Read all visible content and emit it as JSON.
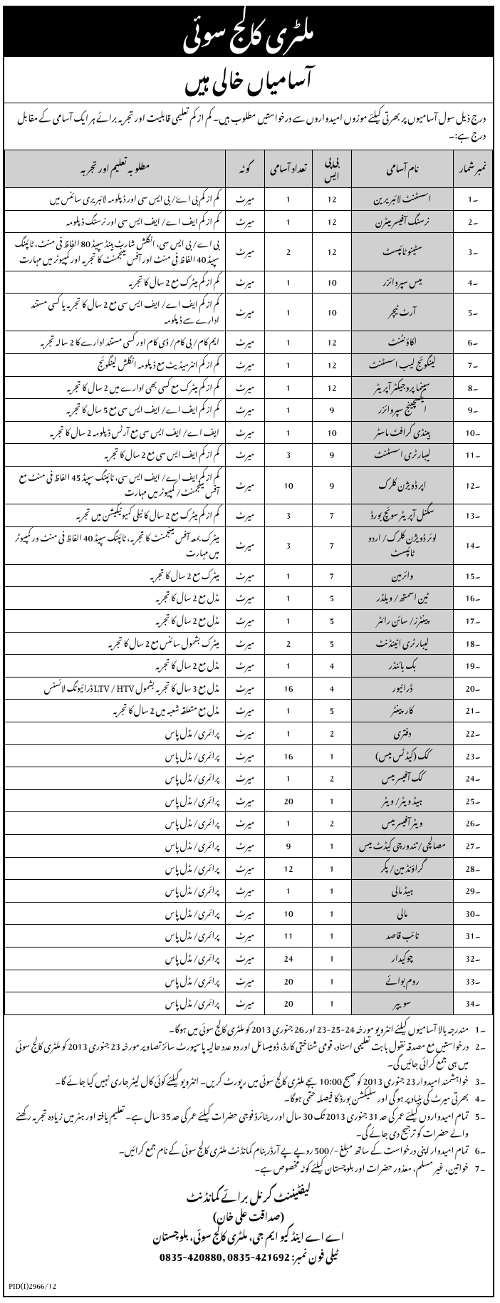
{
  "header": {
    "title": "ملٹری کالج سوئی",
    "subtitle": "آسامیاں خالی ہیں",
    "intro": "درج ذیل سول آسامیوں پر بھرتی کیلئے موزوں امیدواروں سے درخواستیں مطلوب ہیں۔ کم از کم تعلیمی قابلیت اور تجربہ برائے ہر ایک آسامی کے مقابل درج ہے:۔"
  },
  "table": {
    "headers": {
      "sr": "نمبر شمار",
      "post": "نام آسامی",
      "bps": "بی پی ایس",
      "vac": "تعداد آسامی",
      "quota": "کوٹہ",
      "qual": "مطلوبہ تعلیم اور تجربہ"
    },
    "rows": [
      {
        "sr": "۔1",
        "post": "اسسٹنٹ لائبریرین",
        "bps": "12",
        "vac": "1",
        "quota": "میرٹ",
        "qual": "کم از کم بی اےٗ/ بی ایس سی اور ڈپلومہ لائبریری سائنس میں"
      },
      {
        "sr": "۔2",
        "post": "نرسنگ آفیسر میٹرن",
        "bps": "12",
        "vac": "1",
        "quota": "میرٹ",
        "qual": "کم از کم ایف اے/ ایف ایس سی اور نرسنگ ڈپلومہ"
      },
      {
        "sr": "۔3",
        "post": "سٹینو ٹائپسٹ",
        "bps": "12",
        "vac": "2",
        "quota": "میرٹ",
        "qual": "بی اے/ بی ایس سی، انگلش شارٹ ہینڈ سپیڈ 80 الفاظ فی منٹ، ٹائپنگ سپیڈ 40 الفاظ فی منٹ اور آفس مینجمنٹ کا تجربہ اور کمپیوٹر میں مہارت"
      },
      {
        "sr": "۔4",
        "post": "میس سپروائزر",
        "bps": "10",
        "vac": "1",
        "quota": "میرٹ",
        "qual": "کم از کم میٹرک مع 2 سال کا تجربہ"
      },
      {
        "sr": "۔5",
        "post": "آرٹ ٹیچر",
        "bps": "10",
        "vac": "1",
        "quota": "میرٹ",
        "qual": "کم از کم ایف اے/ ایف ایس سی مع 2 سال کا تجربہ یا کسی مستند ادارے سے ڈپلومہ"
      },
      {
        "sr": "۔6",
        "post": "اکاؤنٹنٹ",
        "bps": "12",
        "vac": "1",
        "quota": "میرٹ",
        "qual": "ایم کام/ بی کام/ ڈی کام اور کسی مستند ادارے کا 2 سالہ تجربہ"
      },
      {
        "sr": "۔7",
        "post": "لینگوئج لیب اسسٹنٹ",
        "bps": "12",
        "vac": "1",
        "quota": "میرٹ",
        "qual": "کم از کم انٹرمیڈیٹ مع ڈپلومہ انگلش لینگوئج"
      },
      {
        "sr": "۔8",
        "post": "سینما پروجیکٹر آپریٹر",
        "bps": "12",
        "vac": "1",
        "quota": "میرٹ",
        "qual": "کم از کم میٹرک مع کسی بھی ادارے میں 2 سال کا تجربہ"
      },
      {
        "sr": "۔9",
        "post": "ایکسچینج سپروائزر",
        "bps": "9",
        "vac": "1",
        "quota": "میرٹ",
        "qual": "کم از کم ایف اے/ ایف ایس سی مع 5 سال کا تجربہ"
      },
      {
        "sr": "۔10",
        "post": "ہینڈی کرافٹ ماسٹر",
        "bps": "10",
        "vac": "1",
        "quota": "میرٹ",
        "qual": "ایف اے/ ایف ایس سی مع آرٹس ڈپلومہ 2 سال کا تجربہ"
      },
      {
        "sr": "۔11",
        "post": "لیبارٹری اسسٹنٹ",
        "bps": "9",
        "vac": "3",
        "quota": "میرٹ",
        "qual": "کم از کم ایف ایس سی مع 2 سال کا تجربہ"
      },
      {
        "sr": "۔12",
        "post": "اپر ڈویژن کلرک",
        "bps": "9",
        "vac": "10",
        "quota": "میرٹ",
        "qual": "کم از کم ایف اے/ ایف ایس سی، ٹائپنگ سپیڈ 45 الفاظ فی منٹ مع آفس مینجمنٹ/ کمپیوٹر میں مہارت"
      },
      {
        "sr": "۔13",
        "post": "سگنل آپریٹر سوئچ بورڈ",
        "bps": "7",
        "vac": "3",
        "quota": "میرٹ",
        "qual": "کم از کم میٹرک مع 2 سال کا ٹیلی کمیونیکیشن میں تجربہ"
      },
      {
        "sr": "۔14",
        "post": "لوئر ڈویژن کلرک/ اردو ٹائپسٹ",
        "bps": "7",
        "vac": "3",
        "quota": "میرٹ",
        "qual": "میٹرک بمعہ آفس مینجمنٹ کا تجربہ، ٹائپنگ سپیڈ 40 الفاظ فی منٹ ور کمپیوٹر میں مہارت"
      },
      {
        "sr": "۔15",
        "post": "وائرمین",
        "bps": "7",
        "vac": "1",
        "quota": "میرٹ",
        "qual": "میٹرک مع 2 سال کا تجربہ"
      },
      {
        "sr": "۔16",
        "post": "ٹین اسمتھ/ ویلڈر",
        "bps": "5",
        "vac": "1",
        "quota": "میرٹ",
        "qual": "مڈل مع 2 سال کا تجربہ"
      },
      {
        "sr": "۔17",
        "post": "پینٹرز/ سائن رائٹر",
        "bps": "5",
        "vac": "1",
        "quota": "میرٹ",
        "qual": "مڈل مع 2 سال کا تجربہ"
      },
      {
        "sr": "۔18",
        "post": "لیبارٹری اٹینڈنٹ",
        "bps": "5",
        "vac": "2",
        "quota": "میرٹ",
        "qual": "میٹرک بشمول سائنس مع 2 سال کا تجربہ"
      },
      {
        "sr": "۔19",
        "post": "بک بائنڈر",
        "bps": "4",
        "vac": "1",
        "quota": "میرٹ",
        "qual": "مڈل مع 2 سال کا تجربہ"
      },
      {
        "sr": "۔20",
        "post": "ڈرائیور",
        "bps": "4",
        "vac": "16",
        "quota": "میرٹ",
        "qual": "مڈل مع 3 سال کا تجربہ بشمول LTV / HTV ڈرائیونگ لائسنس"
      },
      {
        "sr": "۔21",
        "post": "کارپینٹر",
        "bps": "5",
        "vac": "1",
        "quota": "میرٹ",
        "qual": "مڈل مع متعلقہ شعبہ میں 2 سال کا تجربہ"
      },
      {
        "sr": "۔22",
        "post": "دفتری",
        "bps": "2",
        "vac": "1",
        "quota": "میرٹ",
        "qual": "پرائمری/ مڈل پاس"
      },
      {
        "sr": "۔23",
        "post": "کک (کیڈٹس میس)",
        "bps": "1",
        "vac": "16",
        "quota": "میرٹ",
        "qual": "پرائمری/ مڈل پاس"
      },
      {
        "sr": "۔24",
        "post": "کک آفیسر میس",
        "bps": "2",
        "vac": "1",
        "quota": "میرٹ",
        "qual": "پرائمری/ مڈل پاس"
      },
      {
        "sr": "۔25",
        "post": "ہیڈ ویٹر/ ویٹر",
        "bps": "1",
        "vac": "20",
        "quota": "میرٹ",
        "qual": "پرائمری/ مڈل پاس"
      },
      {
        "sr": "۔26",
        "post": "ویٹر آفیسر میس",
        "bps": "2",
        "vac": "1",
        "quota": "میرٹ",
        "qual": "پرائمری/ مڈل پاس"
      },
      {
        "sr": "۔27",
        "post": "مصالچی/ تندورچی کیڈٹ میس",
        "bps": "1",
        "vac": "9",
        "quota": "میرٹ",
        "qual": "پرائمری/ مڈل پاس"
      },
      {
        "sr": "۔28",
        "post": "گراؤنڈ مین/ پکر",
        "bps": "1",
        "vac": "12",
        "quota": "میرٹ",
        "qual": "پرائمری/ مڈل پاس"
      },
      {
        "sr": "۔29",
        "post": "ہیڈ مالی",
        "bps": "1",
        "vac": "1",
        "quota": "میرٹ",
        "qual": "پرائمری/ مڈل پاس"
      },
      {
        "sr": "۔30",
        "post": "مالی",
        "bps": "1",
        "vac": "10",
        "quota": "میرٹ",
        "qual": "پرائمری/ مڈل پاس"
      },
      {
        "sr": "۔31",
        "post": "نائب قاصد",
        "bps": "1",
        "vac": "11",
        "quota": "میرٹ",
        "qual": "پرائمری/ مڈل پاس"
      },
      {
        "sr": "۔32",
        "post": "چوکیدار",
        "bps": "1",
        "vac": "24",
        "quota": "میرٹ",
        "qual": "پرائمری/ مڈل پاس"
      },
      {
        "sr": "۔33",
        "post": "روم بوائے",
        "bps": "1",
        "vac": "20",
        "quota": "میرٹ",
        "qual": "پرائمری/ مڈل پاس"
      },
      {
        "sr": "۔34",
        "post": "سویپر",
        "bps": "1",
        "vac": "20",
        "quota": "میرٹ",
        "qual": "پرائمری/ مڈل پاس"
      }
    ]
  },
  "notes": [
    {
      "no": "۔1",
      "text": "مندرجہ بالا آسامیوں کیلئے انٹرویو مورخہ 24-25-23 اور 26 جنوری 2013 کو ملٹری کالج سوئی میں ہوگا۔"
    },
    {
      "no": "۔2",
      "text": "درخواستیں مع مصدقہ نقول بابت تعلیمی اسناد، قومی شناختی کارڈ، ڈومیسائل اور دو عدد حالیہ پاسپورٹ سائز تصاویر مورخہ 23 جنوری 2013 کو ملٹری کالج سوئی میں ہی جمع کرائی جائیں گی۔"
    },
    {
      "no": "۔3",
      "text": "خواہشمند امیدوار 23 جنوری 2013 کو صبح 10:00 بجے ملٹری کالج سوئی میں رپورٹ کریں۔ انٹرویو کیلئے کوئی کال لیٹر جاری نہیں کیا جائے گا۔"
    },
    {
      "no": "۔4",
      "text": "بھرتی میرٹ کی بنیاد پر ہو گی اور سلیکشن بورڈ کا فیصلہ حتمی ہوگا۔"
    },
    {
      "no": "۔5",
      "text": "تمام امیدواروں کیلئے عمر کی حد 31 جنوری 2013 تک 30 سال اور ریٹائرڈ فوجی حضرات کیلئے عمر کی حد 35 سال ہے۔ تعلیم یافتہ اور ہنر میں زیادہ تجربہ رکھنے والے حضرات کو ترجیح دی جائے گی۔"
    },
    {
      "no": "۔6",
      "text": "تمام امیدوار اپنی درخواست کے ساتھ مبلغ -/500 روپے پے آرڈر بنام کمانڈنٹ ملٹری کالج سوئی کے نام جمع کرائیں۔"
    },
    {
      "no": "۔7",
      "text": "خواتین، غیر مسلم، معذور حضرات اور بلوچستان کیلئے کوٹہ مخصوص ہے۔"
    }
  ],
  "footer": {
    "sig1": "لیفٹیننٹ کرنل برائے کمانڈنٹ",
    "sig2": "(صداقت علی خان)",
    "addr": "اے اے اینڈ کیو ایم جی، ملٹری کالج سوئی، بلوچستان",
    "phone_label": "ٹیلی فون نمبر:",
    "phone": "0835-420880, 0835-421692",
    "pid": "PID(I)2966/12"
  }
}
